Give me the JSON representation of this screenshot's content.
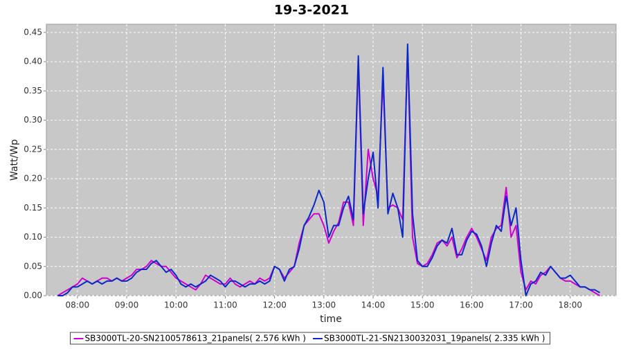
{
  "chart_data": {
    "type": "line",
    "title": "19-3-2021",
    "x_label": "time",
    "y_label": "Watt/Wp",
    "x": [
      7.6,
      7.7,
      7.8,
      7.9,
      8.0,
      8.1,
      8.2,
      8.3,
      8.4,
      8.5,
      8.6,
      8.7,
      8.8,
      8.9,
      9.0,
      9.1,
      9.2,
      9.3,
      9.4,
      9.5,
      9.6,
      9.7,
      9.8,
      9.9,
      10.0,
      10.1,
      10.2,
      10.3,
      10.4,
      10.5,
      10.6,
      10.7,
      10.8,
      10.9,
      11.0,
      11.1,
      11.2,
      11.3,
      11.4,
      11.5,
      11.6,
      11.7,
      11.8,
      11.9,
      12.0,
      12.1,
      12.2,
      12.3,
      12.4,
      12.5,
      12.6,
      12.7,
      12.8,
      12.9,
      13.0,
      13.1,
      13.2,
      13.3,
      13.4,
      13.5,
      13.6,
      13.7,
      13.8,
      13.9,
      14.0,
      14.1,
      14.2,
      14.3,
      14.4,
      14.5,
      14.6,
      14.7,
      14.8,
      14.9,
      15.0,
      15.1,
      15.2,
      15.3,
      15.4,
      15.5,
      15.6,
      15.7,
      15.8,
      15.9,
      16.0,
      16.1,
      16.2,
      16.3,
      16.4,
      16.5,
      16.6,
      16.7,
      16.8,
      16.9,
      17.0,
      17.1,
      17.2,
      17.3,
      17.4,
      17.5,
      17.6,
      17.7,
      17.8,
      17.9,
      18.0,
      18.1,
      18.2,
      18.3,
      18.4,
      18.5,
      18.6
    ],
    "series": [
      {
        "name": "SB3000TL-20-SN2100578613_21panels( 2.576 kWh )",
        "color": "#d000d0",
        "values": [
          0,
          0.005,
          0.01,
          0.015,
          0.02,
          0.03,
          0.025,
          0.02,
          0.025,
          0.03,
          0.03,
          0.025,
          0.03,
          0.025,
          0.03,
          0.035,
          0.045,
          0.045,
          0.05,
          0.06,
          0.055,
          0.05,
          0.05,
          0.04,
          0.03,
          0.025,
          0.02,
          0.015,
          0.01,
          0.02,
          0.035,
          0.03,
          0.025,
          0.02,
          0.02,
          0.03,
          0.02,
          0.015,
          0.02,
          0.025,
          0.02,
          0.03,
          0.025,
          0.03,
          0.05,
          0.045,
          0.03,
          0.04,
          0.05,
          0.09,
          0.12,
          0.13,
          0.14,
          0.14,
          0.12,
          0.09,
          0.11,
          0.125,
          0.16,
          0.16,
          0.12,
          0.4,
          0.12,
          0.25,
          0.2,
          0.17,
          0.37,
          0.15,
          0.155,
          0.15,
          0.13,
          0.42,
          0.1,
          0.055,
          0.05,
          0.055,
          0.07,
          0.09,
          0.095,
          0.085,
          0.1,
          0.065,
          0.08,
          0.1,
          0.115,
          0.1,
          0.08,
          0.06,
          0.1,
          0.115,
          0.12,
          0.185,
          0.1,
          0.12,
          0.04,
          0.01,
          0.025,
          0.02,
          0.035,
          0.04,
          0.05,
          0.04,
          0.03,
          0.025,
          0.025,
          0.02,
          0.015,
          0.015,
          0.01,
          0.005,
          0
        ]
      },
      {
        "name": "SB3000TL-21-SN2130032031_19panels( 2.335 kWh )",
        "color": "#0a28c8",
        "values": [
          0,
          0,
          0.005,
          0.015,
          0.015,
          0.02,
          0.025,
          0.02,
          0.025,
          0.02,
          0.025,
          0.025,
          0.03,
          0.025,
          0.025,
          0.03,
          0.04,
          0.045,
          0.045,
          0.055,
          0.06,
          0.05,
          0.04,
          0.045,
          0.035,
          0.02,
          0.015,
          0.02,
          0.015,
          0.02,
          0.025,
          0.035,
          0.03,
          0.025,
          0.015,
          0.025,
          0.025,
          0.02,
          0.015,
          0.02,
          0.02,
          0.025,
          0.02,
          0.025,
          0.05,
          0.045,
          0.025,
          0.045,
          0.05,
          0.08,
          0.12,
          0.135,
          0.155,
          0.18,
          0.16,
          0.1,
          0.12,
          0.12,
          0.15,
          0.17,
          0.13,
          0.41,
          0.14,
          0.2,
          0.245,
          0.15,
          0.39,
          0.14,
          0.175,
          0.15,
          0.1,
          0.43,
          0.14,
          0.06,
          0.05,
          0.05,
          0.065,
          0.085,
          0.095,
          0.09,
          0.115,
          0.07,
          0.07,
          0.095,
          0.11,
          0.105,
          0.085,
          0.05,
          0.09,
          0.12,
          0.11,
          0.17,
          0.12,
          0.15,
          0.06,
          0,
          0.02,
          0.025,
          0.04,
          0.035,
          0.05,
          0.04,
          0.03,
          0.03,
          0.035,
          0.025,
          0.015,
          0.015,
          0.01,
          0.01,
          0.005
        ]
      }
    ],
    "xlim": [
      7.37,
      18.93
    ],
    "ylim": [
      0,
      0.464
    ],
    "xticks": [
      {
        "value": 8,
        "label": "08:00"
      },
      {
        "value": 9,
        "label": "09:00"
      },
      {
        "value": 10,
        "label": "10:00"
      },
      {
        "value": 11,
        "label": "11:00"
      },
      {
        "value": 12,
        "label": "12:00"
      },
      {
        "value": 13,
        "label": "13:00"
      },
      {
        "value": 14,
        "label": "14:00"
      },
      {
        "value": 15,
        "label": "15:00"
      },
      {
        "value": 16,
        "label": "16:00"
      },
      {
        "value": 17,
        "label": "17:00"
      },
      {
        "value": 18,
        "label": "18:00"
      }
    ],
    "yticks": [
      {
        "value": 0,
        "label": "0.00"
      },
      0.05,
      {
        "value": 0.1,
        "label": "0.10"
      },
      0.15,
      {
        "value": 0.2,
        "label": "0.20"
      },
      0.25,
      {
        "value": 0.3,
        "label": "0.30"
      },
      0.35,
      {
        "value": 0.4,
        "label": "0.40"
      },
      0.45
    ],
    "grid": true,
    "legend": "bottom"
  }
}
